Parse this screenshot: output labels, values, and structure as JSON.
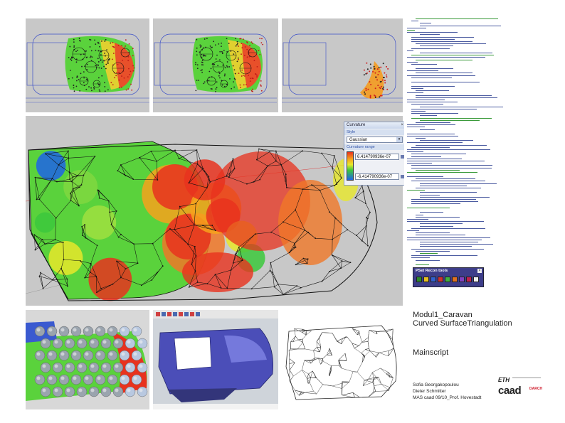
{
  "curvature_panel": {
    "title": "Curvature",
    "style_label": "Style",
    "style_value": "Gaussian",
    "range_label": "Curvature range",
    "max_value": "6.414790936e-07",
    "min_value": "-6.414790936e-07"
  },
  "pset_toolbar": {
    "title": "PSet Recon tools"
  },
  "credits": {
    "project": "Modul1_Caravan",
    "subtitle": "Curved SurfaceTriangulation",
    "section": "Mainscript",
    "author_1": "Sofia Georgakopoulou",
    "author_2": "Dieter Schmitter",
    "course": "MAS caad 09/10_Prof. Hovestadt"
  },
  "logo": {
    "eth": "ETH",
    "caad": "caad",
    "darch": "DARCH"
  },
  "colors": {
    "viewport_bg": "#c8c8c8",
    "wire_blue": "#3a4ec8",
    "heat_red": "#e8321e",
    "heat_green": "#5ad23c",
    "code_blue": "#2b3f8f"
  }
}
